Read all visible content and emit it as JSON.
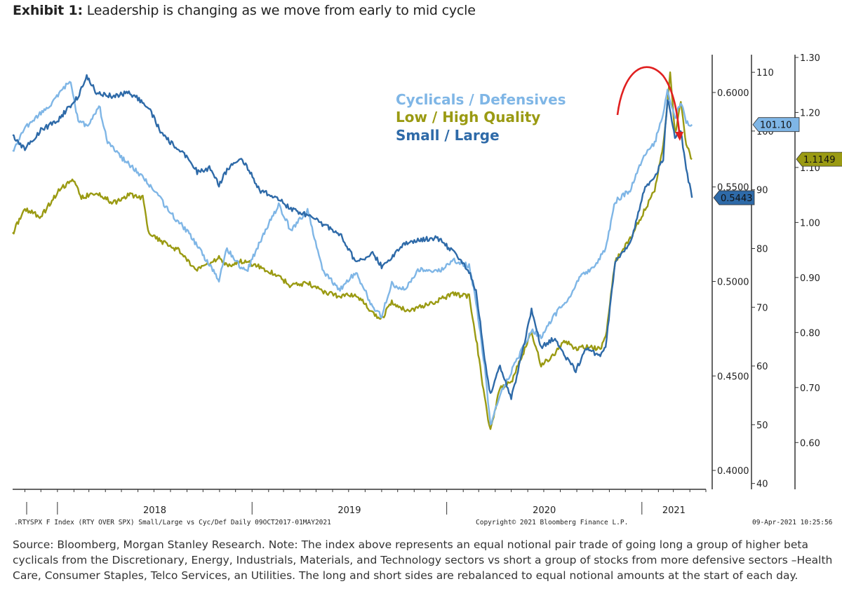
{
  "exhibit": {
    "label": "Exhibit 1:",
    "title": "Leadership is changing as we move from early to mid cycle"
  },
  "bloomberg_meta": {
    "left": ".RTYSPX F Index (RTY OVER SPX) Small/Large vs Cyc/Def  Daily 09OCT2017-01MAY2021",
    "center": "Copyright© 2021 Bloomberg Finance L.P.",
    "right": "09-Apr-2021 10:25:56"
  },
  "footnote": "Source: Bloomberg, Morgan Stanley Research. Note: The index above represents an equal notional pair trade of going long a group of higher beta cyclicals from the Discretionary, Energy, Industrials, Materials, and Technology sectors vs short a group of stocks from more defensive sectors –Health Care, Consumer Staples, Telco Services, an Utilities. The long and short sides are rebalanced to equal notional amounts at the start of each day.",
  "colors": {
    "cyclicals": "#7fb6e6",
    "quality": "#9a9a12",
    "small_large": "#2e6aa8",
    "arrow": "#e02020",
    "axis": "#333333"
  },
  "chart_data": {
    "type": "line",
    "x_range": [
      "2017-10-09",
      "2021-05-01"
    ],
    "x_ticks": [
      "2018",
      "2019",
      "2020",
      "2021"
    ],
    "legend_placement": "top-right",
    "grid": false,
    "axes": [
      {
        "id": "small_large",
        "side": "right-inner",
        "range": [
          0.39,
          0.62
        ],
        "ticks": [
          "0.6000",
          "0.5500",
          "0.5000",
          "0.4500",
          "0.4000"
        ]
      },
      {
        "id": "cyclicals",
        "side": "right-middle",
        "range": [
          39,
          113
        ],
        "ticks": [
          "110",
          "100",
          "90",
          "80",
          "70",
          "60",
          "50",
          "40"
        ]
      },
      {
        "id": "quality",
        "side": "right-outer",
        "range": [
          0.515,
          1.305
        ],
        "ticks": [
          "1.30",
          "1.20",
          "1.10",
          "1.00",
          "0.90",
          "0.80",
          "0.70",
          "0.60"
        ]
      }
    ],
    "series": [
      {
        "name": "Cyclicals / Defensives",
        "axis": "cyclicals",
        "color_key": "cyclicals",
        "last_value": "101.10",
        "points": [
          [
            "2017-10-09",
            96.5
          ],
          [
            "2017-11-01",
            100.5
          ],
          [
            "2017-12-01",
            103
          ],
          [
            "2017-12-20",
            104.5
          ],
          [
            "2018-01-15",
            107.5
          ],
          [
            "2018-01-26",
            108.5
          ],
          [
            "2018-02-09",
            101.5
          ],
          [
            "2018-03-01",
            101
          ],
          [
            "2018-03-20",
            104.5
          ],
          [
            "2018-04-05",
            98
          ],
          [
            "2018-05-01",
            95.5
          ],
          [
            "2018-06-01",
            93
          ],
          [
            "2018-07-01",
            90
          ],
          [
            "2018-08-01",
            86
          ],
          [
            "2018-09-01",
            83
          ],
          [
            "2018-10-15",
            77
          ],
          [
            "2018-10-31",
            74.5
          ],
          [
            "2018-11-15",
            80
          ],
          [
            "2018-12-10",
            77
          ],
          [
            "2018-12-24",
            76.5
          ],
          [
            "2019-01-20",
            82
          ],
          [
            "2019-02-20",
            87.5
          ],
          [
            "2019-03-15",
            83
          ],
          [
            "2019-04-15",
            86.5
          ],
          [
            "2019-05-15",
            76
          ],
          [
            "2019-06-15",
            73
          ],
          [
            "2019-07-15",
            76
          ],
          [
            "2019-08-15",
            70
          ],
          [
            "2019-09-01",
            68.5
          ],
          [
            "2019-09-20",
            74
          ],
          [
            "2019-10-15",
            73
          ],
          [
            "2019-11-10",
            76.5
          ],
          [
            "2019-12-15",
            76
          ],
          [
            "2020-01-15",
            78
          ],
          [
            "2020-02-12",
            77
          ],
          [
            "2020-02-25",
            71
          ],
          [
            "2020-03-12",
            60
          ],
          [
            "2020-03-23",
            50
          ],
          [
            "2020-04-10",
            55
          ],
          [
            "2020-05-01",
            59
          ],
          [
            "2020-06-08",
            66
          ],
          [
            "2020-06-26",
            65
          ],
          [
            "2020-07-20",
            68.5
          ],
          [
            "2020-08-20",
            72
          ],
          [
            "2020-09-10",
            75.5
          ],
          [
            "2020-10-01",
            76.5
          ],
          [
            "2020-10-25",
            80
          ],
          [
            "2020-11-12",
            88
          ],
          [
            "2020-12-10",
            90
          ],
          [
            "2021-01-05",
            96
          ],
          [
            "2021-01-25",
            98
          ],
          [
            "2021-02-10",
            103
          ],
          [
            "2021-02-18",
            107
          ],
          [
            "2021-03-04",
            102
          ],
          [
            "2021-03-15",
            105
          ],
          [
            "2021-03-25",
            101.5
          ],
          [
            "2021-04-05",
            101.1
          ]
        ]
      },
      {
        "name": "Low / High Quality",
        "axis": "quality",
        "color_key": "quality",
        "last_value": "1.1149",
        "points": [
          [
            "2017-10-09",
            0.98
          ],
          [
            "2017-11-01",
            1.025
          ],
          [
            "2017-12-01",
            1.01
          ],
          [
            "2018-01-01",
            1.055
          ],
          [
            "2018-01-29",
            1.08
          ],
          [
            "2018-02-15",
            1.045
          ],
          [
            "2018-03-15",
            1.055
          ],
          [
            "2018-04-15",
            1.035
          ],
          [
            "2018-05-15",
            1.05
          ],
          [
            "2018-06-10",
            1.045
          ],
          [
            "2018-06-20",
            0.985
          ],
          [
            "2018-07-15",
            0.965
          ],
          [
            "2018-08-15",
            0.95
          ],
          [
            "2018-09-01",
            0.93
          ],
          [
            "2018-09-20",
            0.915
          ],
          [
            "2018-10-31",
            0.935
          ],
          [
            "2018-11-15",
            0.92
          ],
          [
            "2018-12-15",
            0.93
          ],
          [
            "2019-01-15",
            0.92
          ],
          [
            "2019-02-15",
            0.905
          ],
          [
            "2019-03-15",
            0.885
          ],
          [
            "2019-04-15",
            0.89
          ],
          [
            "2019-05-15",
            0.875
          ],
          [
            "2019-06-15",
            0.865
          ],
          [
            "2019-07-15",
            0.87
          ],
          [
            "2019-08-15",
            0.835
          ],
          [
            "2019-09-01",
            0.825
          ],
          [
            "2019-09-20",
            0.855
          ],
          [
            "2019-10-15",
            0.84
          ],
          [
            "2019-11-10",
            0.845
          ],
          [
            "2019-12-20",
            0.86
          ],
          [
            "2020-01-15",
            0.87
          ],
          [
            "2020-02-12",
            0.865
          ],
          [
            "2020-02-25",
            0.79
          ],
          [
            "2020-03-12",
            0.68
          ],
          [
            "2020-03-23",
            0.62
          ],
          [
            "2020-04-10",
            0.7
          ],
          [
            "2020-05-01",
            0.71
          ],
          [
            "2020-06-08",
            0.8
          ],
          [
            "2020-06-26",
            0.74
          ],
          [
            "2020-07-20",
            0.76
          ],
          [
            "2020-08-10",
            0.785
          ],
          [
            "2020-08-30",
            0.77
          ],
          [
            "2020-09-20",
            0.775
          ],
          [
            "2020-10-15",
            0.77
          ],
          [
            "2020-10-25",
            0.79
          ],
          [
            "2020-11-12",
            0.93
          ],
          [
            "2020-12-10",
            0.97
          ],
          [
            "2021-01-05",
            1.02
          ],
          [
            "2021-01-25",
            1.06
          ],
          [
            "2021-02-10",
            1.14
          ],
          [
            "2021-02-23",
            1.27
          ],
          [
            "2021-03-04",
            1.16
          ],
          [
            "2021-03-15",
            1.22
          ],
          [
            "2021-03-25",
            1.14
          ],
          [
            "2021-04-05",
            1.115
          ]
        ]
      },
      {
        "name": "Small / Large",
        "axis": "small_large",
        "color_key": "small_large",
        "last_value": "0.5443",
        "points": [
          [
            "2017-10-09",
            0.577
          ],
          [
            "2017-11-01",
            0.57
          ],
          [
            "2017-12-01",
            0.58
          ],
          [
            "2018-01-01",
            0.585
          ],
          [
            "2018-02-09",
            0.598
          ],
          [
            "2018-02-25",
            0.608
          ],
          [
            "2018-03-15",
            0.6
          ],
          [
            "2018-04-15",
            0.598
          ],
          [
            "2018-05-15",
            0.6
          ],
          [
            "2018-06-20",
            0.593
          ],
          [
            "2018-07-15",
            0.578
          ],
          [
            "2018-08-15",
            0.57
          ],
          [
            "2018-08-31",
            0.566
          ],
          [
            "2018-09-20",
            0.558
          ],
          [
            "2018-10-15",
            0.56
          ],
          [
            "2018-10-31",
            0.551
          ],
          [
            "2018-11-15",
            0.559
          ],
          [
            "2018-12-10",
            0.566
          ],
          [
            "2018-12-24",
            0.56
          ],
          [
            "2019-01-15",
            0.548
          ],
          [
            "2019-02-15",
            0.545
          ],
          [
            "2019-03-15",
            0.538
          ],
          [
            "2019-04-15",
            0.535
          ],
          [
            "2019-05-15",
            0.53
          ],
          [
            "2019-06-15",
            0.525
          ],
          [
            "2019-07-15",
            0.51
          ],
          [
            "2019-08-15",
            0.515
          ],
          [
            "2019-09-01",
            0.508
          ],
          [
            "2019-10-15",
            0.52
          ],
          [
            "2019-11-10",
            0.522
          ],
          [
            "2019-12-15",
            0.523
          ],
          [
            "2020-01-15",
            0.515
          ],
          [
            "2020-02-12",
            0.505
          ],
          [
            "2020-02-25",
            0.495
          ],
          [
            "2020-03-12",
            0.46
          ],
          [
            "2020-03-23",
            0.44
          ],
          [
            "2020-04-10",
            0.455
          ],
          [
            "2020-05-01",
            0.438
          ],
          [
            "2020-05-20",
            0.46
          ],
          [
            "2020-06-08",
            0.485
          ],
          [
            "2020-06-26",
            0.465
          ],
          [
            "2020-07-20",
            0.47
          ],
          [
            "2020-08-10",
            0.46
          ],
          [
            "2020-08-30",
            0.453
          ],
          [
            "2020-09-20",
            0.465
          ],
          [
            "2020-10-15",
            0.46
          ],
          [
            "2020-10-25",
            0.466
          ],
          [
            "2020-11-12",
            0.51
          ],
          [
            "2020-12-10",
            0.52
          ],
          [
            "2021-01-05",
            0.548
          ],
          [
            "2021-01-25",
            0.555
          ],
          [
            "2021-02-10",
            0.565
          ],
          [
            "2021-02-18",
            0.597
          ],
          [
            "2021-03-04",
            0.577
          ],
          [
            "2021-03-15",
            0.58
          ],
          [
            "2021-03-25",
            0.56
          ],
          [
            "2021-04-05",
            0.5443
          ]
        ]
      }
    ]
  }
}
